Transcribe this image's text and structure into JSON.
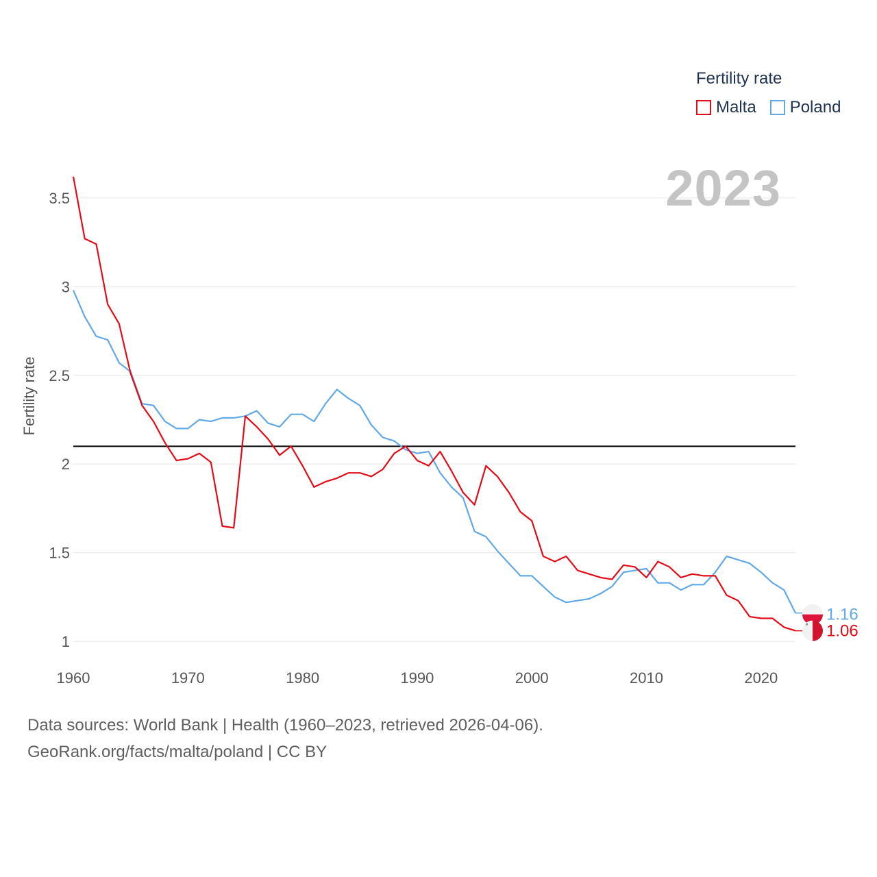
{
  "legend": {
    "title": "Fertility rate",
    "items": [
      {
        "label": "Malta",
        "color": "#e30b17"
      },
      {
        "label": "Poland",
        "color": "#60a8e6"
      }
    ]
  },
  "year_overlay": "2023",
  "source": {
    "line1": "Data sources: World Bank | Health (1960–2023, retrieved 2026-04-06).",
    "line2": "GeoRank.org/facts/malta/poland | CC BY"
  },
  "chart_data": {
    "type": "line",
    "ylabel": "Fertility rate",
    "xlabel": "",
    "xlim": [
      1960,
      2023
    ],
    "ylim": [
      0.85,
      3.65
    ],
    "x_ticks": [
      1960,
      1970,
      1980,
      1990,
      2000,
      2010,
      2020
    ],
    "y_ticks": [
      1,
      1.5,
      2,
      2.5,
      3,
      3.5
    ],
    "y_tick_labels": [
      "1",
      "1.5",
      "2",
      "2.5",
      "3",
      "3.5"
    ],
    "reference_line": 2.1,
    "x": [
      1960,
      1961,
      1962,
      1963,
      1964,
      1965,
      1966,
      1967,
      1968,
      1969,
      1970,
      1971,
      1972,
      1973,
      1974,
      1975,
      1976,
      1977,
      1978,
      1979,
      1980,
      1981,
      1982,
      1983,
      1984,
      1985,
      1986,
      1987,
      1988,
      1989,
      1990,
      1991,
      1992,
      1993,
      1994,
      1995,
      1996,
      1997,
      1998,
      1999,
      2000,
      2001,
      2002,
      2003,
      2004,
      2005,
      2006,
      2007,
      2008,
      2009,
      2010,
      2011,
      2012,
      2013,
      2014,
      2015,
      2016,
      2017,
      2018,
      2019,
      2020,
      2021,
      2022,
      2023
    ],
    "series": [
      {
        "name": "Malta",
        "color": "#e30b17",
        "end_label": "1.06",
        "values": [
          3.62,
          3.27,
          3.24,
          2.9,
          2.79,
          2.51,
          2.33,
          2.24,
          2.12,
          2.02,
          2.03,
          2.06,
          2.01,
          1.65,
          1.64,
          2.27,
          2.21,
          2.14,
          2.05,
          2.1,
          1.99,
          1.87,
          1.9,
          1.92,
          1.95,
          1.95,
          1.93,
          1.97,
          2.06,
          2.1,
          2.02,
          1.99,
          2.07,
          1.96,
          1.84,
          1.77,
          1.99,
          1.93,
          1.84,
          1.73,
          1.68,
          1.48,
          1.45,
          1.48,
          1.4,
          1.38,
          1.36,
          1.35,
          1.43,
          1.42,
          1.36,
          1.45,
          1.42,
          1.36,
          1.38,
          1.37,
          1.37,
          1.26,
          1.23,
          1.14,
          1.13,
          1.13,
          1.08,
          1.06
        ]
      },
      {
        "name": "Poland",
        "color": "#60a8e6",
        "end_label": "1.16",
        "values": [
          2.98,
          2.83,
          2.72,
          2.7,
          2.57,
          2.52,
          2.34,
          2.33,
          2.24,
          2.2,
          2.2,
          2.25,
          2.24,
          2.26,
          2.26,
          2.27,
          2.3,
          2.23,
          2.21,
          2.28,
          2.28,
          2.24,
          2.34,
          2.42,
          2.37,
          2.33,
          2.22,
          2.15,
          2.13,
          2.08,
          2.06,
          2.07,
          1.95,
          1.87,
          1.81,
          1.62,
          1.59,
          1.51,
          1.44,
          1.37,
          1.37,
          1.31,
          1.25,
          1.22,
          1.23,
          1.24,
          1.27,
          1.31,
          1.39,
          1.4,
          1.41,
          1.33,
          1.33,
          1.29,
          1.32,
          1.32,
          1.39,
          1.48,
          1.46,
          1.44,
          1.39,
          1.33,
          1.29,
          1.16
        ]
      }
    ]
  }
}
